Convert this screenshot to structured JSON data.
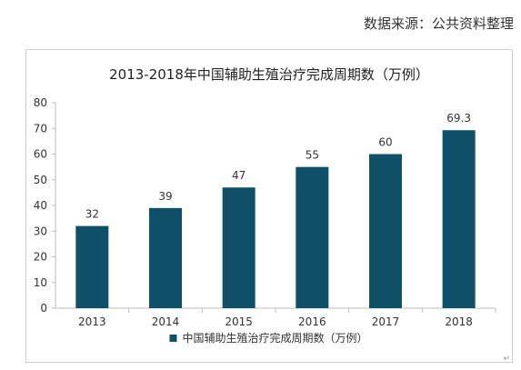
{
  "source_note": "数据来源：公共资料整理",
  "corner_mark": "↵",
  "chart_data": {
    "type": "bar",
    "title": "2013-2018年中国辅助生殖治疗完成周期数（万例）",
    "categories": [
      "2013",
      "2014",
      "2015",
      "2016",
      "2017",
      "2018"
    ],
    "series": [
      {
        "name": "中国辅助生殖治疗完成周期数（万例）",
        "values": [
          32,
          39,
          47,
          55,
          60,
          69.3
        ]
      }
    ],
    "data_labels": [
      "32",
      "39",
      "47",
      "55",
      "60",
      "69.3"
    ],
    "xlabel": "",
    "ylabel": "",
    "ylim": [
      0,
      80
    ],
    "yticks": [
      0,
      10,
      20,
      30,
      40,
      50,
      60,
      70,
      80
    ],
    "grid": false,
    "legend_position": "bottom",
    "colors": {
      "bar": "#0e5168",
      "axis": "#bfbfbf",
      "text": "#333333"
    }
  }
}
